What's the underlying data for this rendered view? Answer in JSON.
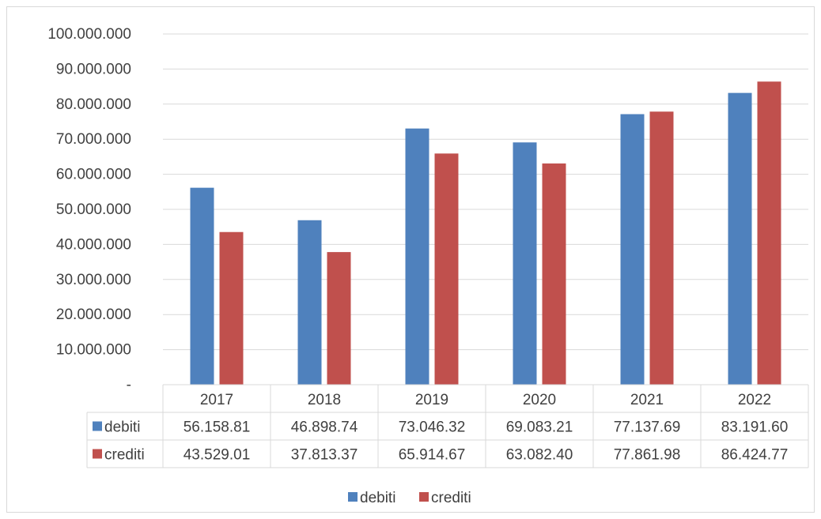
{
  "chart_data": {
    "type": "bar",
    "categories": [
      "2017",
      "2018",
      "2019",
      "2020",
      "2021",
      "2022"
    ],
    "series": [
      {
        "name": "debiti",
        "color": "#4f81bd",
        "values": [
          56158810,
          46898740,
          73046320,
          69083210,
          77137690,
          83191600
        ],
        "table_labels": [
          "56.158.81",
          "46.898.74",
          "73.046.32",
          "69.083.21",
          "77.137.69",
          "83.191.60"
        ]
      },
      {
        "name": "crediti",
        "color": "#c0504d",
        "values": [
          43529010,
          37813370,
          65914670,
          63082400,
          77861980,
          86424770
        ],
        "table_labels": [
          "43.529.01",
          "37.813.37",
          "65.914.67",
          "63.082.40",
          "77.861.98",
          "86.424.77"
        ]
      }
    ],
    "y_ticks": [
      {
        "value": 0,
        "label": "-"
      },
      {
        "value": 10000000,
        "label": "10.000.000"
      },
      {
        "value": 20000000,
        "label": "20.000.000"
      },
      {
        "value": 30000000,
        "label": "30.000.000"
      },
      {
        "value": 40000000,
        "label": "40.000.000"
      },
      {
        "value": 50000000,
        "label": "50.000.000"
      },
      {
        "value": 60000000,
        "label": "60.000.000"
      },
      {
        "value": 70000000,
        "label": "70.000.000"
      },
      {
        "value": 80000000,
        "label": "80.000.000"
      },
      {
        "value": 90000000,
        "label": "90.000.000"
      },
      {
        "value": 100000000,
        "label": "100.000.000"
      }
    ],
    "ylim": [
      0,
      100000000
    ],
    "grid": true,
    "legend_placement": "bottom",
    "data_table": true,
    "title": "",
    "xlabel": "",
    "ylabel": ""
  }
}
